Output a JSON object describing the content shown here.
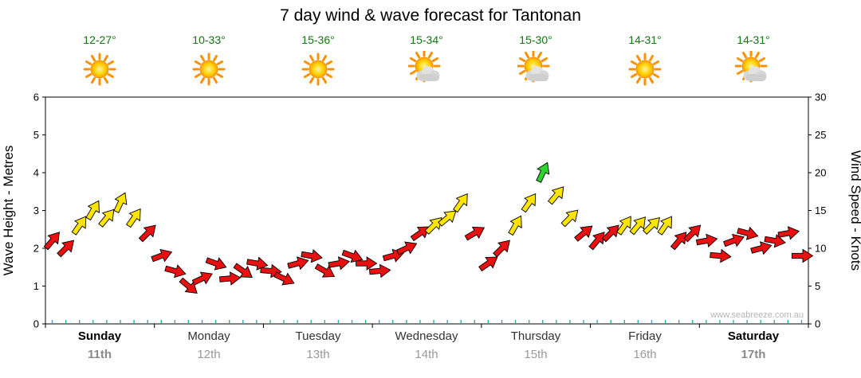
{
  "title": "7 day wind & wave forecast for Tantonan",
  "watermark": "www.seabreeze.com.au",
  "header": {
    "days": [
      {
        "name": "Sunday",
        "date": "11th",
        "temp": "12-27°",
        "icon": "sunny",
        "weekend": true
      },
      {
        "name": "Monday",
        "date": "12th",
        "temp": "10-33°",
        "icon": "sunny",
        "weekend": false
      },
      {
        "name": "Tuesday",
        "date": "13th",
        "temp": "15-36°",
        "icon": "sunny",
        "weekend": false
      },
      {
        "name": "Wednesday",
        "date": "14th",
        "temp": "15-34°",
        "icon": "partly-cloudy",
        "weekend": false
      },
      {
        "name": "Thursday",
        "date": "15th",
        "temp": "15-30°",
        "icon": "partly-cloudy",
        "weekend": false
      },
      {
        "name": "Friday",
        "date": "16th",
        "temp": "14-31°",
        "icon": "sunny",
        "weekend": false
      },
      {
        "name": "Saturday",
        "date": "17th",
        "temp": "14-31°",
        "icon": "partly-cloudy",
        "weekend": true
      }
    ]
  },
  "chart_data": {
    "type": "scatter",
    "marker": "wind-arrow",
    "title": "7 day wind & wave forecast for Tantonan",
    "x_categories": [
      "Sunday 11th",
      "Monday 12th",
      "Tuesday 13th",
      "Wednesday 14th",
      "Thursday 15th",
      "Friday 16th",
      "Saturday 17th"
    ],
    "points_per_day": 8,
    "grid": false,
    "legend": false,
    "y_left_axis": {
      "label": "Wave Height - Metres",
      "min": 0,
      "max": 6,
      "tick_step": 1
    },
    "y_right_axis": {
      "label": "Wind Speed - Knots",
      "min": 0,
      "max": 30,
      "tick_step": 5
    },
    "series": [
      {
        "name": "Wind Speed (knots)",
        "values": [
          11,
          10,
          13,
          15,
          14,
          16,
          14,
          12,
          9,
          7,
          5,
          6,
          8,
          6,
          7,
          8,
          7,
          6,
          8,
          9,
          7,
          8,
          9,
          8,
          7,
          9,
          10,
          12,
          13,
          14,
          16,
          12,
          8,
          10,
          13,
          16,
          20,
          17,
          14,
          12,
          11,
          12,
          13,
          13,
          13,
          13,
          11,
          12,
          11,
          9,
          11,
          12,
          10,
          11,
          12,
          9
        ],
        "directions_deg": [
          -50,
          -45,
          -55,
          -60,
          -50,
          -65,
          -55,
          -45,
          -20,
          15,
          40,
          -25,
          20,
          -5,
          35,
          10,
          5,
          25,
          -15,
          10,
          30,
          -10,
          20,
          0,
          -5,
          -15,
          -25,
          -35,
          -45,
          -40,
          -55,
          -30,
          -35,
          -45,
          -60,
          -55,
          -65,
          -50,
          -45,
          -40,
          -50,
          -45,
          -55,
          -50,
          -45,
          -55,
          -50,
          -45,
          -10,
          5,
          -20,
          15,
          -15,
          10,
          -10,
          0
        ]
      }
    ],
    "color_scale": {
      "red": "#e81010",
      "yellow": "#ffe400",
      "green": "#2fd32f",
      "yellow_at_knots": 12.5,
      "green_at_knots": 18
    }
  }
}
